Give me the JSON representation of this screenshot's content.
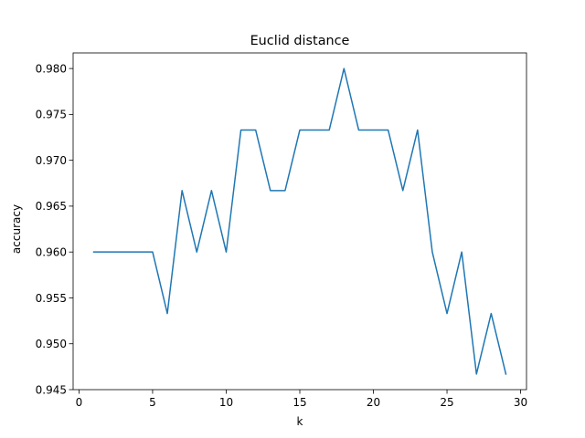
{
  "chart_data": {
    "type": "line",
    "title": "Euclid distance",
    "xlabel": "k",
    "ylabel": "accuracy",
    "xlim": [
      -0.4,
      30.4
    ],
    "ylim": [
      0.945,
      0.9817
    ],
    "xticks": [
      0,
      5,
      10,
      15,
      20,
      25,
      30
    ],
    "xtick_labels": [
      "0",
      "5",
      "10",
      "15",
      "20",
      "25",
      "30"
    ],
    "yticks": [
      0.945,
      0.95,
      0.955,
      0.96,
      0.965,
      0.97,
      0.975,
      0.98
    ],
    "ytick_labels": [
      "0.945",
      "0.950",
      "0.955",
      "0.960",
      "0.965",
      "0.970",
      "0.975",
      "0.980"
    ],
    "grid": false,
    "series_color": "#1f77b4",
    "series": [
      {
        "x": [
          1,
          2,
          3,
          4,
          5,
          6,
          7,
          8,
          9,
          10,
          11,
          12,
          13,
          14,
          15,
          16,
          17,
          18,
          19,
          20,
          21,
          22,
          23,
          24,
          25,
          26,
          27,
          28,
          29
        ],
        "values": [
          0.96,
          0.96,
          0.96,
          0.96,
          0.96,
          0.9533,
          0.9667,
          0.96,
          0.9667,
          0.96,
          0.9733,
          0.9733,
          0.9667,
          0.9667,
          0.9733,
          0.9733,
          0.9733,
          0.98,
          0.9733,
          0.9733,
          0.9733,
          0.9667,
          0.9733,
          0.96,
          0.9533,
          0.96,
          0.9467,
          0.9533,
          0.9467
        ]
      }
    ]
  }
}
